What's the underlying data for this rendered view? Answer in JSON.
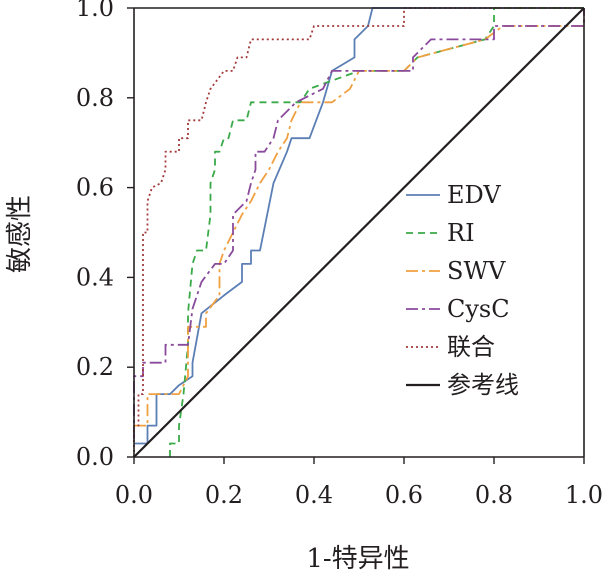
{
  "chart_data": {
    "type": "line",
    "title": "",
    "xlabel": "1-特异性",
    "ylabel": "敏感性",
    "xlim": [
      0,
      1
    ],
    "ylim": [
      0,
      1
    ],
    "xticks": [
      "0.0",
      "0.2",
      "0.4",
      "0.6",
      "0.8",
      "1.0"
    ],
    "yticks": [
      "0.0",
      "0.2",
      "0.4",
      "0.6",
      "0.8",
      "1.0"
    ],
    "grid": false,
    "legend_position": "right",
    "series": [
      {
        "name": "EDV",
        "color": "#5b7fb5",
        "dash": "solid",
        "points": [
          [
            0,
            0.03
          ],
          [
            0.03,
            0.03
          ],
          [
            0.03,
            0.07
          ],
          [
            0.05,
            0.07
          ],
          [
            0.05,
            0.14
          ],
          [
            0.07,
            0.14
          ],
          [
            0.08,
            0.14
          ],
          [
            0.08,
            0.14
          ],
          [
            0.1,
            0.16
          ],
          [
            0.13,
            0.18
          ],
          [
            0.13,
            0.21
          ],
          [
            0.15,
            0.32
          ],
          [
            0.2,
            0.36
          ],
          [
            0.24,
            0.39
          ],
          [
            0.24,
            0.43
          ],
          [
            0.26,
            0.43
          ],
          [
            0.26,
            0.46
          ],
          [
            0.28,
            0.46
          ],
          [
            0.31,
            0.61
          ],
          [
            0.34,
            0.68
          ],
          [
            0.35,
            0.71
          ],
          [
            0.39,
            0.71
          ],
          [
            0.42,
            0.79
          ],
          [
            0.44,
            0.86
          ],
          [
            0.49,
            0.89
          ],
          [
            0.49,
            0.93
          ],
          [
            0.52,
            0.96
          ],
          [
            0.53,
            1.0
          ],
          [
            1.0,
            1.0
          ]
        ]
      },
      {
        "name": "RI",
        "color": "#3aaa48",
        "dash": "7 5",
        "points": [
          [
            0.08,
            0
          ],
          [
            0.08,
            0.03
          ],
          [
            0.1,
            0.03
          ],
          [
            0.1,
            0.07
          ],
          [
            0.11,
            0.14
          ],
          [
            0.12,
            0.25
          ],
          [
            0.12,
            0.32
          ],
          [
            0.13,
            0.43
          ],
          [
            0.14,
            0.46
          ],
          [
            0.16,
            0.46
          ],
          [
            0.17,
            0.54
          ],
          [
            0.17,
            0.61
          ],
          [
            0.18,
            0.64
          ],
          [
            0.18,
            0.68
          ],
          [
            0.19,
            0.68
          ],
          [
            0.2,
            0.71
          ],
          [
            0.21,
            0.71
          ],
          [
            0.22,
            0.75
          ],
          [
            0.25,
            0.75
          ],
          [
            0.26,
            0.79
          ],
          [
            0.37,
            0.79
          ],
          [
            0.39,
            0.82
          ],
          [
            0.5,
            0.86
          ],
          [
            0.6,
            0.86
          ],
          [
            0.63,
            0.89
          ],
          [
            0.78,
            0.93
          ],
          [
            0.8,
            0.96
          ],
          [
            0.8,
            1.0
          ],
          [
            1.0,
            1.0
          ]
        ]
      },
      {
        "name": "SWV",
        "color": "#f0a040",
        "dash": "12 4 3 4",
        "points": [
          [
            0,
            0.07
          ],
          [
            0.03,
            0.07
          ],
          [
            0.03,
            0.14
          ],
          [
            0.1,
            0.14
          ],
          [
            0.12,
            0.18
          ],
          [
            0.12,
            0.29
          ],
          [
            0.16,
            0.29
          ],
          [
            0.16,
            0.32
          ],
          [
            0.19,
            0.36
          ],
          [
            0.19,
            0.43
          ],
          [
            0.2,
            0.46
          ],
          [
            0.22,
            0.5
          ],
          [
            0.24,
            0.54
          ],
          [
            0.26,
            0.57
          ],
          [
            0.28,
            0.61
          ],
          [
            0.3,
            0.64
          ],
          [
            0.32,
            0.68
          ],
          [
            0.34,
            0.71
          ],
          [
            0.35,
            0.75
          ],
          [
            0.37,
            0.79
          ],
          [
            0.44,
            0.79
          ],
          [
            0.48,
            0.82
          ],
          [
            0.5,
            0.86
          ],
          [
            0.6,
            0.86
          ],
          [
            0.63,
            0.89
          ],
          [
            0.78,
            0.93
          ],
          [
            0.82,
            0.96
          ],
          [
            1.0,
            0.96
          ],
          [
            1.0,
            1.0
          ]
        ]
      },
      {
        "name": "CysC",
        "color": "#8a4a9c",
        "dash": "12 4 3 4",
        "points": [
          [
            0,
            0.04
          ],
          [
            0,
            0.18
          ],
          [
            0.02,
            0.18
          ],
          [
            0.02,
            0.21
          ],
          [
            0.07,
            0.21
          ],
          [
            0.07,
            0.25
          ],
          [
            0.12,
            0.25
          ],
          [
            0.13,
            0.33
          ],
          [
            0.15,
            0.39
          ],
          [
            0.18,
            0.43
          ],
          [
            0.2,
            0.43
          ],
          [
            0.22,
            0.46
          ],
          [
            0.22,
            0.54
          ],
          [
            0.25,
            0.57
          ],
          [
            0.26,
            0.61
          ],
          [
            0.27,
            0.64
          ],
          [
            0.27,
            0.68
          ],
          [
            0.29,
            0.68
          ],
          [
            0.31,
            0.71
          ],
          [
            0.32,
            0.75
          ],
          [
            0.36,
            0.79
          ],
          [
            0.42,
            0.82
          ],
          [
            0.44,
            0.86
          ],
          [
            0.62,
            0.86
          ],
          [
            0.62,
            0.89
          ],
          [
            0.66,
            0.93
          ],
          [
            0.8,
            0.93
          ],
          [
            0.8,
            0.96
          ],
          [
            1.0,
            0.96
          ],
          [
            1.0,
            1.0
          ]
        ]
      },
      {
        "name": "联合",
        "color": "#a23a3a",
        "dash": "2 3",
        "points": [
          [
            0,
            0
          ],
          [
            0,
            0.07
          ],
          [
            0.01,
            0.07
          ],
          [
            0.01,
            0.14
          ],
          [
            0.02,
            0.14
          ],
          [
            0.02,
            0.5
          ],
          [
            0.03,
            0.5
          ],
          [
            0.03,
            0.57
          ],
          [
            0.04,
            0.6
          ],
          [
            0.06,
            0.61
          ],
          [
            0.07,
            0.64
          ],
          [
            0.07,
            0.68
          ],
          [
            0.1,
            0.68
          ],
          [
            0.1,
            0.71
          ],
          [
            0.12,
            0.71
          ],
          [
            0.12,
            0.75
          ],
          [
            0.15,
            0.75
          ],
          [
            0.16,
            0.79
          ],
          [
            0.17,
            0.82
          ],
          [
            0.2,
            0.86
          ],
          [
            0.22,
            0.86
          ],
          [
            0.23,
            0.89
          ],
          [
            0.25,
            0.89
          ],
          [
            0.26,
            0.93
          ],
          [
            0.39,
            0.93
          ],
          [
            0.4,
            0.96
          ],
          [
            0.6,
            0.96
          ],
          [
            0.6,
            1.0
          ],
          [
            1.0,
            1.0
          ]
        ]
      },
      {
        "name": "参考线",
        "color": "#231f20",
        "dash": "solid",
        "points": [
          [
            0,
            0
          ],
          [
            1,
            1
          ]
        ]
      }
    ]
  }
}
